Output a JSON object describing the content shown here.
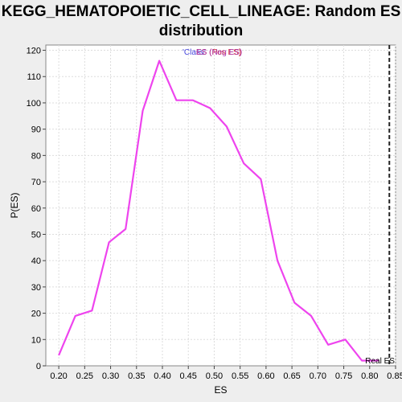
{
  "chart_data": {
    "type": "line",
    "title_line1": "KEGG_HEMATOPOIETIC_CELL_LINEAGE: Random ES",
    "title_line2": "distribution",
    "xlabel": "ES",
    "ylabel": "P(ES)",
    "xlim": [
      0.175,
      0.85
    ],
    "ylim": [
      0,
      122
    ],
    "x_ticks": [
      "0.20",
      "0.25",
      "0.30",
      "0.35",
      "0.40",
      "0.45",
      "0.50",
      "0.55",
      "0.60",
      "0.65",
      "0.70",
      "0.75",
      "0.80",
      "0.85"
    ],
    "y_ticks": [
      "0",
      "10",
      "20",
      "30",
      "40",
      "50",
      "60",
      "70",
      "80",
      "90",
      "100",
      "110",
      "120"
    ],
    "grid": true,
    "legend_placement": "top-center",
    "legend": [
      {
        "label": "'Class'",
        "color": "#4444dd"
      },
      {
        "label": "ES (Pos ES)",
        "color": "#dd3333"
      },
      {
        "label": "ES (Neg ES)",
        "color": "#aa33aa"
      }
    ],
    "series": [
      {
        "color": "#ee44ee",
        "x": [
          0.2,
          0.232,
          0.264,
          0.297,
          0.329,
          0.362,
          0.394,
          0.427,
          0.459,
          0.492,
          0.524,
          0.557,
          0.59,
          0.622,
          0.655,
          0.687,
          0.72,
          0.753,
          0.785,
          0.818
        ],
        "y": [
          4,
          19,
          21,
          47,
          52,
          97,
          116,
          101,
          101,
          98,
          91,
          77,
          71,
          40,
          24,
          19,
          8,
          10,
          2,
          2
        ]
      }
    ],
    "real_es": {
      "label": "Real ES",
      "x": 0.838,
      "color": "#222222"
    }
  }
}
